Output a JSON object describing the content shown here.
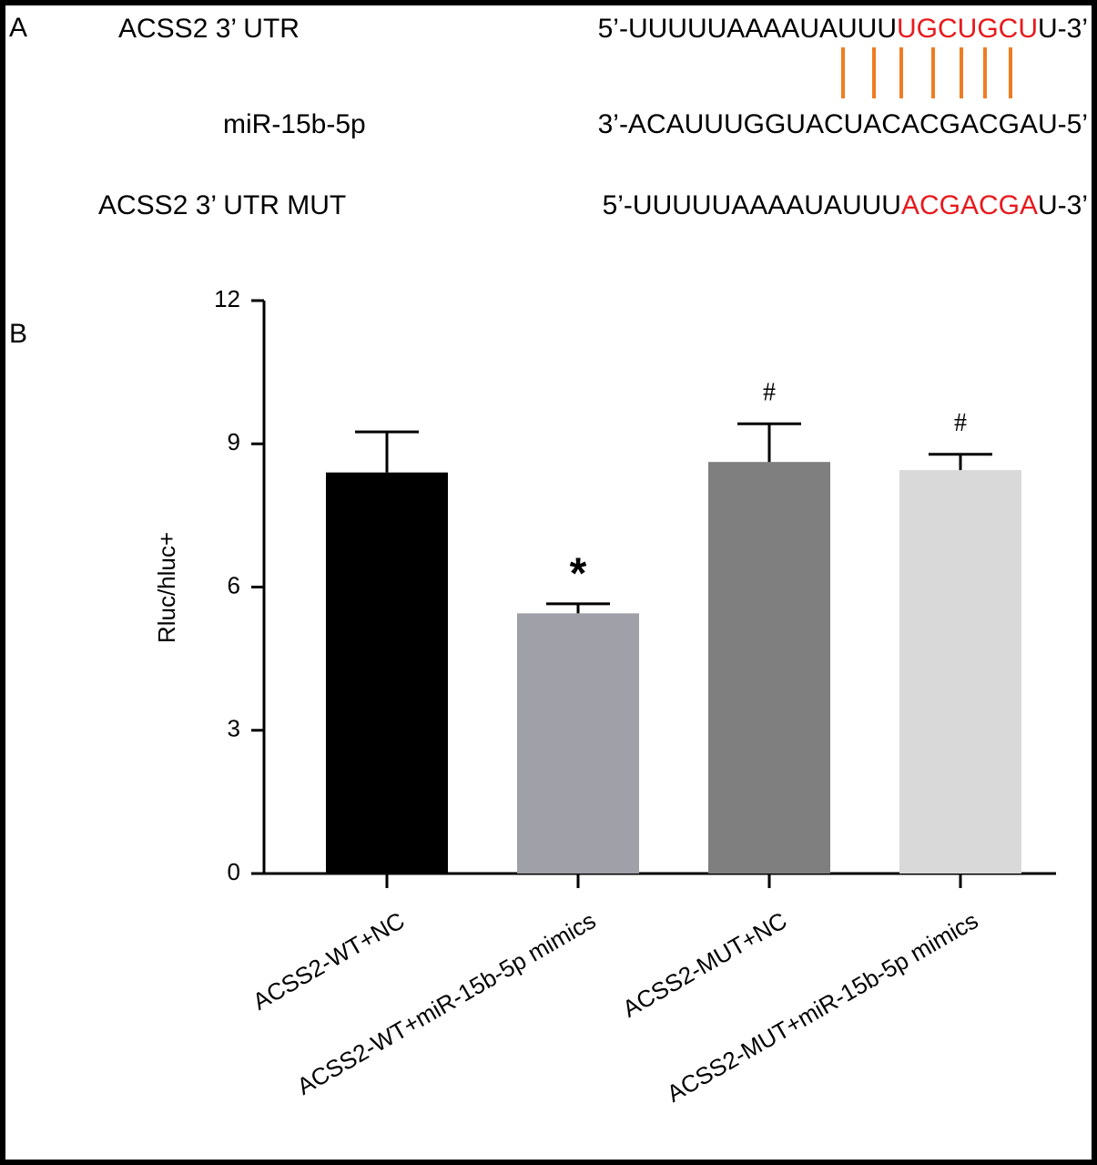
{
  "panel_a": {
    "label": "A",
    "rows": [
      {
        "name": "ACSS2 3’ UTR",
        "prefix": "5’-UUUUUAAAAUAUUU",
        "highlight": "UGCUGCU",
        "suffix": "U-3’"
      },
      {
        "name": "miR-15b-5p",
        "sequence": "3’-ACAUUUGGUACUACACGACGAU-5’"
      },
      {
        "name": "ACSS2 3’ UTR MUT",
        "prefix": "5’-UUUUUAAAAUAUUU",
        "highlight": "ACGACGA",
        "suffix": "U-3’"
      }
    ]
  },
  "chart_data": {
    "type": "bar",
    "panel_label": "B",
    "y_label": "Rluc/hluc+",
    "categories": [
      "ACSS2-WT+NC",
      "ACSS2-WT+miR-15b-5p mimics",
      "ACSS2-MUT+NC",
      "ACSS2-MUT+miR-15b-5p mimics"
    ],
    "values": [
      8.4,
      5.45,
      8.62,
      8.45
    ],
    "errors": [
      0.85,
      0.2,
      0.8,
      0.33
    ],
    "colors": [
      "#000000",
      "#a0a0a8",
      "#7f7f7f",
      "#d9d9d9"
    ],
    "annotations": [
      {
        "category": "ACSS2-WT+miR-15b-5p mimics",
        "text": "*"
      },
      {
        "category": "ACSS2-MUT+NC",
        "text": "#"
      },
      {
        "category": "ACSS2-MUT+miR-15b-5p mimics",
        "text": "#"
      }
    ],
    "ylim": [
      0,
      12
    ],
    "yticks": [
      0,
      3,
      6,
      9,
      12
    ],
    "grid": false
  }
}
